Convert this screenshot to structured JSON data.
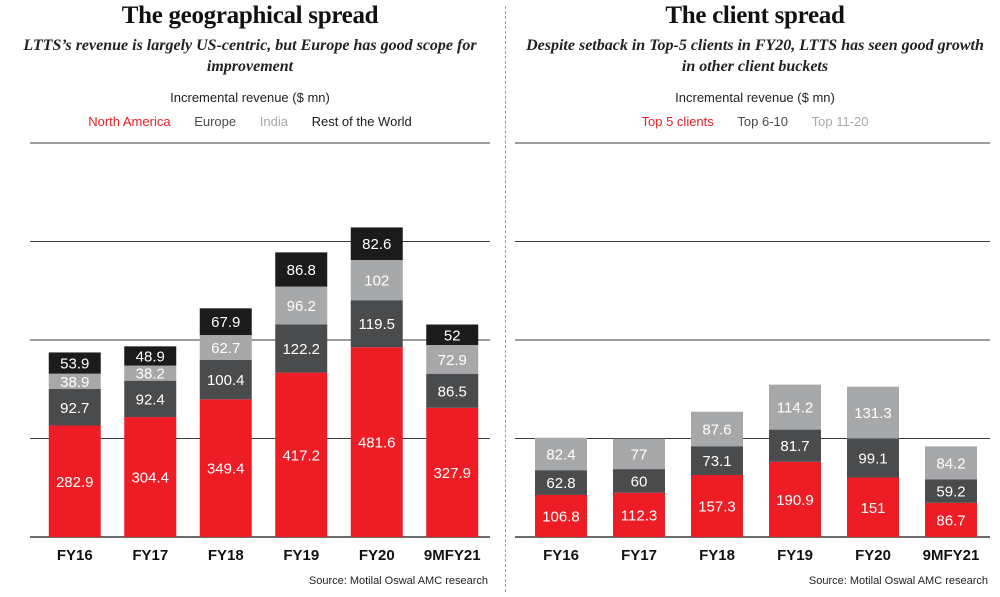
{
  "colors": {
    "red": "#ee1c25",
    "dark": "#4a4b4d",
    "grey": "#a7a8aa",
    "black": "#1b1b1b",
    "grid": "#3a3a3a"
  },
  "source": "Source: Motilal Oswal AMC research",
  "chart_data": [
    {
      "type": "bar",
      "stacked": true,
      "title": "The geographical spread",
      "subtitle": "LTTS’s revenue is largely US-centric, but Europe has good scope for improvement",
      "ylabel": "Incremental revenue ($ mn)",
      "legend_position": "top",
      "categories": [
        "FY16",
        "FY17",
        "FY18",
        "FY19",
        "FY20",
        "9MFY21"
      ],
      "ylim": [
        0,
        1000
      ],
      "series": [
        {
          "name": "North America",
          "color": "#ee1c25",
          "values": [
            282.9,
            304.4,
            349.4,
            417.2,
            481.6,
            327.9
          ]
        },
        {
          "name": "Europe",
          "color": "#4a4b4d",
          "values": [
            92.7,
            92.4,
            100.4,
            122.2,
            119.5,
            86.5
          ]
        },
        {
          "name": "India",
          "color": "#a7a8aa",
          "values": [
            38.9,
            38.2,
            62.7,
            96.2,
            102,
            72.9
          ]
        },
        {
          "name": "Rest of the World",
          "color": "#1b1b1b",
          "values": [
            53.9,
            48.9,
            67.9,
            86.8,
            82.6,
            52
          ]
        }
      ]
    },
    {
      "type": "bar",
      "stacked": true,
      "title": "The client spread",
      "subtitle": "Despite setback in Top-5 clients in FY20, LTTS has seen good growth in other client buckets",
      "ylabel": "Incremental revenue ($ mn)",
      "legend_position": "top",
      "categories": [
        "FY16",
        "FY17",
        "FY18",
        "FY19",
        "FY20",
        "9MFY21"
      ],
      "ylim": [
        0,
        1000
      ],
      "series": [
        {
          "name": "Top 5 clients",
          "color": "#ee1c25",
          "values": [
            106.8,
            112.3,
            157.3,
            190.9,
            151,
            86.7
          ]
        },
        {
          "name": "Top 6-10",
          "color": "#4a4b4d",
          "values": [
            62.8,
            60,
            73.1,
            81.7,
            99.1,
            59.2
          ]
        },
        {
          "name": "Top 11-20",
          "color": "#a7a8aa",
          "values": [
            82.4,
            77,
            87.6,
            114.2,
            131.3,
            84.2
          ]
        }
      ]
    }
  ]
}
